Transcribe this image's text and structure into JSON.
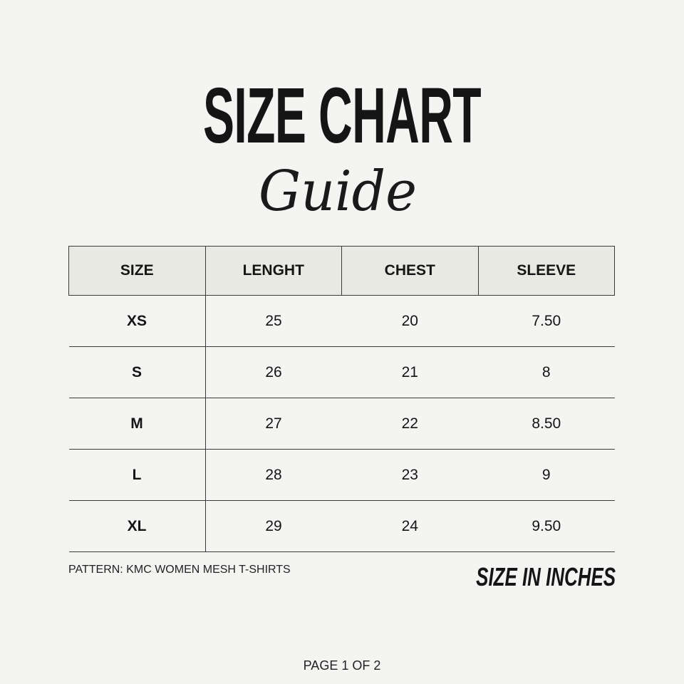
{
  "title": "SIZE CHART",
  "subtitle": "Guide",
  "table": {
    "headers": [
      "SIZE",
      "LENGHT",
      "CHEST",
      "SLEEVE"
    ],
    "rows": [
      [
        "XS",
        "25",
        "20",
        "7.50"
      ],
      [
        "S",
        "26",
        "21",
        "8"
      ],
      [
        "M",
        "27",
        "22",
        "8.50"
      ],
      [
        "L",
        "28",
        "23",
        "9"
      ],
      [
        "XL",
        "29",
        "24",
        "9.50"
      ]
    ]
  },
  "pattern": "PATTERN: KMC WOMEN MESH T-SHIRTS",
  "units": "SIZE IN INCHES",
  "page": "PAGE 1 OF 2",
  "colors": {
    "background": "#f4f4f2",
    "header_fill": "#e9e9e4",
    "text": "#151515"
  }
}
